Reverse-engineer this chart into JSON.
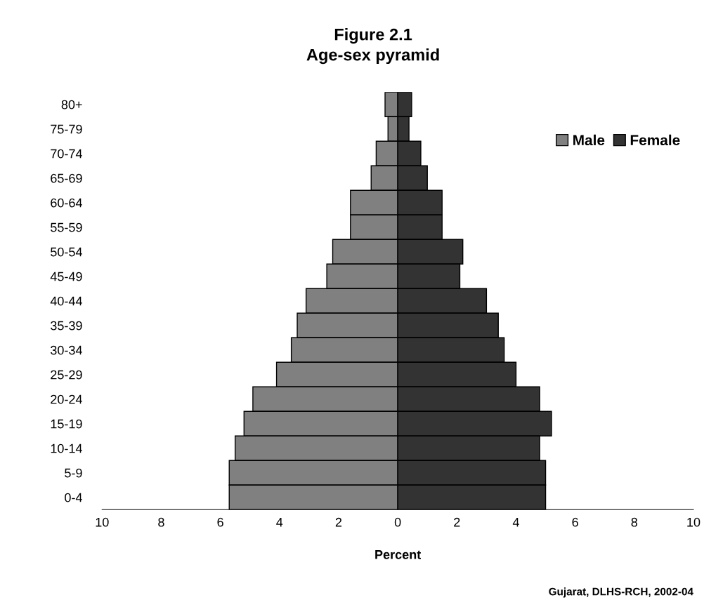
{
  "chart_data": [
    {
      "type": "bar",
      "orientation": "horizontal",
      "title": "Figure 2.1\nAge-sex pyramid",
      "categories": [
        "80+",
        "75-79",
        "70-74",
        "65-69",
        "60-64",
        "55-59",
        "50-54",
        "45-49",
        "40-44",
        "35-39",
        "30-34",
        "25-29",
        "20-24",
        "15-19",
        "10-14",
        "5-9",
        "0-4"
      ],
      "series": [
        {
          "name": "Male",
          "color": "#808080",
          "values": [
            0.43,
            0.33,
            0.73,
            0.9,
            1.6,
            1.6,
            2.2,
            2.4,
            3.1,
            3.4,
            3.6,
            4.1,
            4.9,
            5.2,
            5.5,
            5.7,
            5.7
          ]
        }
      ],
      "xlim": [
        10,
        0
      ],
      "xticks": [
        10,
        8,
        6,
        4,
        2
      ],
      "grid": false
    },
    {
      "type": "bar",
      "orientation": "horizontal",
      "xlabel": "Percent",
      "categories": [
        null,
        null,
        null,
        null,
        null,
        null,
        null,
        null,
        null,
        null,
        null,
        null,
        null,
        null,
        null,
        null,
        null
      ],
      "series": [
        {
          "name": "Female",
          "color": "#333333",
          "values": [
            0.47,
            0.38,
            0.78,
            1.0,
            1.5,
            1.5,
            2.2,
            2.1,
            3.0,
            3.4,
            3.6,
            4.0,
            4.8,
            5.2,
            4.8,
            5.0,
            5.0
          ]
        }
      ],
      "xlim": [
        0,
        10
      ],
      "xticks": [
        0,
        2,
        4,
        6,
        8,
        10
      ],
      "tick_labels": "x",
      "legend": "top right",
      "grid": false,
      "annotations": [
        "Gujarat, DLHS-RCH, 2002-04"
      ]
    }
  ]
}
